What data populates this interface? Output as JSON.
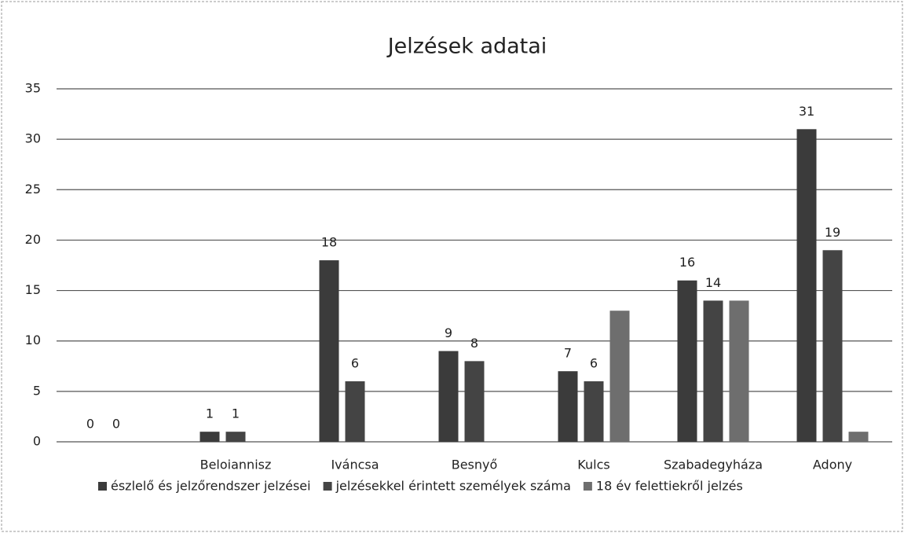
{
  "chart_data": {
    "type": "bar",
    "title": "Jelzések adatai",
    "categories": [
      null,
      "Beloiannisz",
      "Iváncsa",
      "Besnyő",
      "Kulcs",
      "Szabadegyháza",
      "Adony"
    ],
    "series": [
      {
        "name": "észlelő és jelzőrendszer jelzései",
        "color": "#3b3b3b",
        "data_labels": true,
        "values": [
          0,
          1,
          18,
          9,
          7,
          16,
          31
        ]
      },
      {
        "name": "jelzésekkel érintett személyek száma",
        "color": "#444444",
        "data_labels": true,
        "values": [
          0,
          1,
          6,
          8,
          6,
          14,
          19
        ]
      },
      {
        "name": "18 év felettiekről jelzés",
        "color": "#6e6e6e",
        "data_labels": false,
        "values": [
          0,
          0,
          0,
          0,
          13,
          14,
          1
        ]
      }
    ],
    "ylim": [
      0,
      35
    ],
    "yticks": [
      0,
      5,
      10,
      15,
      20,
      25,
      30,
      35
    ],
    "grid": true,
    "legend": "bottom"
  }
}
